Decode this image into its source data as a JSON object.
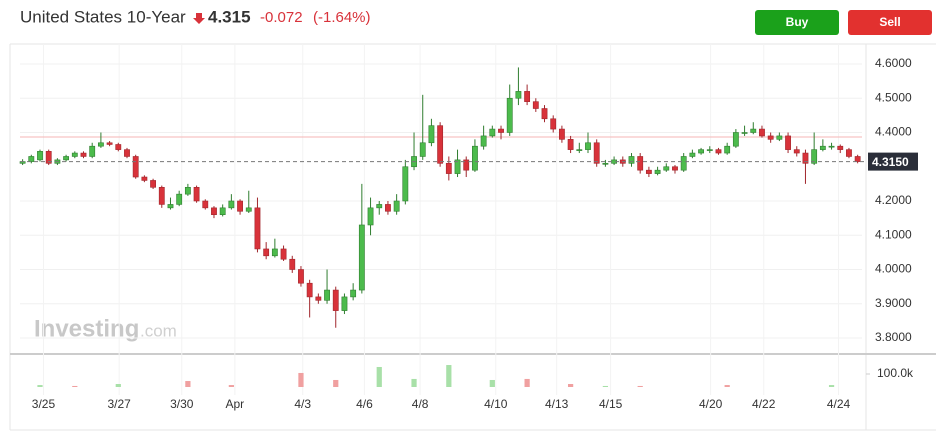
{
  "chart_data": {
    "type": "candlestick",
    "title": "United States 10-Year",
    "price": "4.315",
    "change": "-0.072",
    "change_pct": "(-1.64%)",
    "buttons": [
      "Buy",
      "Sell"
    ],
    "watermark": {
      "brand": "Investing",
      "suffix": ".com"
    },
    "up_color": "#4cbb4c",
    "down_color": "#d8323a",
    "xlim": [
      -0.3,
      96.5
    ],
    "ylim": [
      3.765,
      4.635
    ],
    "yticks": [
      {
        "value": 4.6,
        "label": "4.6000"
      },
      {
        "value": 4.5,
        "label": "4.5000"
      },
      {
        "value": 4.4,
        "label": "4.4000"
      },
      {
        "value": 4.2,
        "label": "4.2000"
      },
      {
        "value": 4.1,
        "label": "4.1000"
      },
      {
        "value": 4.0,
        "label": "4.0000"
      },
      {
        "value": 3.9,
        "label": "3.9000"
      },
      {
        "value": 3.8,
        "label": "3.8000"
      }
    ],
    "xticks": [
      {
        "value": 2.4,
        "label": "3/25"
      },
      {
        "value": 11.1,
        "label": "3/27"
      },
      {
        "value": 18.3,
        "label": "3/30"
      },
      {
        "value": 24.4,
        "label": "Apr"
      },
      {
        "value": 32.2,
        "label": "4/3"
      },
      {
        "value": 39.3,
        "label": "4/6"
      },
      {
        "value": 45.7,
        "label": "4/8"
      },
      {
        "value": 54.4,
        "label": "4/10"
      },
      {
        "value": 61.4,
        "label": "4/13"
      },
      {
        "value": 67.6,
        "label": "4/15"
      },
      {
        "value": 79.1,
        "label": "4/20"
      },
      {
        "value": 85.2,
        "label": "4/22"
      },
      {
        "value": 93.8,
        "label": "4/24"
      }
    ],
    "last": {
      "value": 4.315,
      "label": "4.3150"
    },
    "reference_line": 4.387,
    "candles": [
      [
        4.31,
        4.322,
        4.305,
        4.315
      ],
      [
        4.315,
        4.335,
        4.31,
        4.33
      ],
      [
        4.32,
        4.35,
        4.315,
        4.345
      ],
      [
        4.345,
        4.35,
        4.305,
        4.31
      ],
      [
        4.31,
        4.325,
        4.305,
        4.32
      ],
      [
        4.32,
        4.335,
        4.315,
        4.33
      ],
      [
        4.33,
        4.345,
        4.325,
        4.34
      ],
      [
        4.34,
        4.345,
        4.325,
        4.33
      ],
      [
        4.33,
        4.37,
        4.325,
        4.36
      ],
      [
        4.36,
        4.4,
        4.355,
        4.37
      ],
      [
        4.37,
        4.375,
        4.36,
        4.365
      ],
      [
        4.365,
        4.37,
        4.345,
        4.35
      ],
      [
        4.35,
        4.355,
        4.325,
        4.33
      ],
      [
        4.33,
        4.335,
        4.265,
        4.27
      ],
      [
        4.27,
        4.275,
        4.255,
        4.26
      ],
      [
        4.26,
        4.265,
        4.235,
        4.24
      ],
      [
        4.24,
        4.245,
        4.18,
        4.19
      ],
      [
        4.18,
        4.21,
        4.175,
        4.19
      ],
      [
        4.19,
        4.23,
        4.185,
        4.22
      ],
      [
        4.22,
        4.25,
        4.215,
        4.24
      ],
      [
        4.24,
        4.245,
        4.195,
        4.2
      ],
      [
        4.2,
        4.205,
        4.175,
        4.18
      ],
      [
        4.18,
        4.185,
        4.15,
        4.16
      ],
      [
        4.16,
        4.19,
        4.155,
        4.18
      ],
      [
        4.18,
        4.22,
        4.175,
        4.2
      ],
      [
        4.2,
        4.205,
        4.16,
        4.17
      ],
      [
        4.17,
        4.23,
        4.165,
        4.18
      ],
      [
        4.18,
        4.21,
        4.05,
        4.06
      ],
      [
        4.06,
        4.08,
        4.03,
        4.04
      ],
      [
        4.04,
        4.09,
        4.035,
        4.06
      ],
      [
        4.06,
        4.07,
        4.025,
        4.03
      ],
      [
        4.03,
        4.04,
        3.99,
        4.0
      ],
      [
        4.0,
        4.01,
        3.95,
        3.96
      ],
      [
        3.96,
        3.97,
        3.86,
        3.92
      ],
      [
        3.92,
        3.93,
        3.9,
        3.91
      ],
      [
        3.91,
        4.0,
        3.9,
        3.94
      ],
      [
        3.94,
        3.95,
        3.83,
        3.88
      ],
      [
        3.88,
        3.93,
        3.87,
        3.92
      ],
      [
        3.92,
        3.96,
        3.91,
        3.94
      ],
      [
        3.94,
        4.25,
        3.93,
        4.13
      ],
      [
        4.13,
        4.21,
        4.1,
        4.18
      ],
      [
        4.18,
        4.2,
        4.16,
        4.19
      ],
      [
        4.19,
        4.2,
        4.16,
        4.17
      ],
      [
        4.17,
        4.22,
        4.16,
        4.2
      ],
      [
        4.2,
        4.32,
        4.19,
        4.3
      ],
      [
        4.3,
        4.4,
        4.29,
        4.33
      ],
      [
        4.33,
        4.51,
        4.32,
        4.37
      ],
      [
        4.37,
        4.44,
        4.36,
        4.42
      ],
      [
        4.42,
        4.43,
        4.3,
        4.31
      ],
      [
        4.31,
        4.33,
        4.26,
        4.28
      ],
      [
        4.28,
        4.35,
        4.27,
        4.32
      ],
      [
        4.32,
        4.33,
        4.27,
        4.29
      ],
      [
        4.29,
        4.38,
        4.285,
        4.36
      ],
      [
        4.36,
        4.42,
        4.35,
        4.39
      ],
      [
        4.39,
        4.42,
        4.385,
        4.41
      ],
      [
        4.41,
        4.42,
        4.38,
        4.4
      ],
      [
        4.4,
        4.54,
        4.39,
        4.5
      ],
      [
        4.5,
        4.59,
        4.48,
        4.52
      ],
      [
        4.52,
        4.54,
        4.48,
        4.49
      ],
      [
        4.49,
        4.5,
        4.46,
        4.47
      ],
      [
        4.47,
        4.48,
        4.43,
        4.44
      ],
      [
        4.44,
        4.45,
        4.4,
        4.41
      ],
      [
        4.41,
        4.42,
        4.37,
        4.38
      ],
      [
        4.38,
        4.39,
        4.34,
        4.35
      ],
      [
        4.35,
        4.37,
        4.34,
        4.35
      ],
      [
        4.35,
        4.4,
        4.34,
        4.37
      ],
      [
        4.37,
        4.38,
        4.3,
        4.31
      ],
      [
        4.31,
        4.32,
        4.3,
        4.31
      ],
      [
        4.31,
        4.33,
        4.305,
        4.32
      ],
      [
        4.32,
        4.33,
        4.3,
        4.31
      ],
      [
        4.31,
        4.34,
        4.3,
        4.33
      ],
      [
        4.33,
        4.34,
        4.28,
        4.29
      ],
      [
        4.29,
        4.3,
        4.27,
        4.28
      ],
      [
        4.28,
        4.3,
        4.275,
        4.29
      ],
      [
        4.29,
        4.31,
        4.285,
        4.3
      ],
      [
        4.3,
        4.305,
        4.28,
        4.29
      ],
      [
        4.29,
        4.34,
        4.285,
        4.33
      ],
      [
        4.33,
        4.35,
        4.325,
        4.34
      ],
      [
        4.34,
        4.355,
        4.335,
        4.35
      ],
      [
        4.35,
        4.36,
        4.34,
        4.35
      ],
      [
        4.35,
        4.355,
        4.335,
        4.34
      ],
      [
        4.34,
        4.37,
        4.335,
        4.36
      ],
      [
        4.36,
        4.41,
        4.355,
        4.4
      ],
      [
        4.4,
        4.42,
        4.39,
        4.4
      ],
      [
        4.4,
        4.43,
        4.395,
        4.41
      ],
      [
        4.41,
        4.42,
        4.385,
        4.39
      ],
      [
        4.39,
        4.4,
        4.37,
        4.38
      ],
      [
        4.38,
        4.4,
        4.375,
        4.39
      ],
      [
        4.39,
        4.4,
        4.34,
        4.35
      ],
      [
        4.35,
        4.36,
        4.33,
        4.34
      ],
      [
        4.34,
        4.35,
        4.25,
        4.31
      ],
      [
        4.31,
        4.4,
        4.305,
        4.35
      ],
      [
        4.35,
        4.38,
        4.345,
        4.36
      ],
      [
        4.36,
        4.37,
        4.35,
        4.36
      ],
      [
        4.36,
        4.365,
        4.34,
        4.35
      ],
      [
        4.35,
        4.355,
        4.325,
        4.33
      ],
      [
        4.33,
        4.335,
        4.31,
        4.315
      ]
    ],
    "volume": {
      "vlim": [
        0,
        200000
      ],
      "vticks": [
        {
          "value": 100000,
          "label": "100.0k"
        }
      ],
      "x": [
        2,
        6,
        11,
        19,
        24,
        32,
        36,
        41,
        45,
        49,
        54,
        58,
        63,
        67,
        71,
        81,
        93
      ],
      "values": [
        15000,
        8000,
        23000,
        46000,
        15000,
        108000,
        54000,
        154000,
        62000,
        169000,
        54000,
        62000,
        23000,
        8000,
        8000,
        15000,
        15000
      ],
      "colors": [
        "#a8e0a8",
        "#f0a0a0",
        "#a8e0a8",
        "#f0a0a0",
        "#f0a0a0",
        "#f0a0a0",
        "#f0a0a0",
        "#a8e0a8",
        "#a8e0a8",
        "#a8e0a8",
        "#a8e0a8",
        "#f0a0a0",
        "#f0a0a0",
        "#a8e0a8",
        "#f0a0a0",
        "#f0a0a0",
        "#a8e0a8"
      ]
    }
  }
}
